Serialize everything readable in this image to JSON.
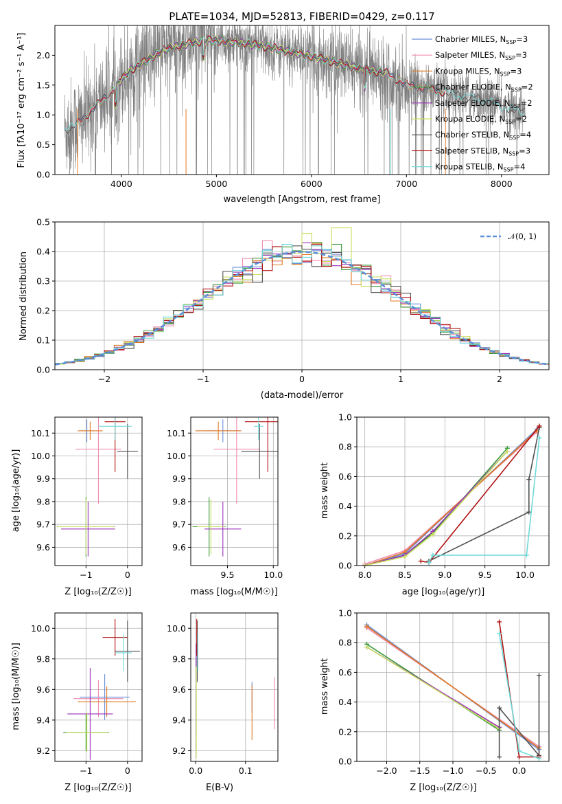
{
  "colors": {
    "chabrier_miles": "#6a8fd8",
    "salpeter_miles": "#f08cb0",
    "kroupa_miles": "#e07820",
    "chabrier_elodie": "#3a9a3a",
    "salpeter_elodie": "#9a30b8",
    "kroupa_elodie": "#c8e060",
    "chabrier_stelib": "#505050",
    "salpeter_stelib": "#b01010",
    "kroupa_stelib": "#70d8d8",
    "data": "#808080",
    "gauss": "#5b8fd8"
  },
  "chart_data": [
    {
      "id": "spectrum",
      "type": "line",
      "title": "PLATE=1034, MJD=52813, FIBERID=0429, z=0.117",
      "xlabel": "wavelength [Angstrom, rest frame]",
      "ylabel": "Flux [fλ10⁻¹⁷ erg cm⁻² s⁻¹ A⁻¹]",
      "xlim": [
        3300,
        8500
      ],
      "ylim": [
        0,
        2.5
      ],
      "xticks": [
        "4000",
        "5000",
        "6000",
        "7000",
        "8000"
      ],
      "yticks": [
        "0.0",
        "0.5",
        "1.0",
        "1.5",
        "2.0"
      ],
      "legend_position": "right",
      "legend": [
        {
          "key": "chabrier_miles",
          "label": "Chabrier MILES, N",
          "sub": "SSP",
          "eq": "=3"
        },
        {
          "key": "salpeter_miles",
          "label": "Salpeter MILES, N",
          "sub": "SSP",
          "eq": "=3"
        },
        {
          "key": "kroupa_miles",
          "label": "Kroupa MILES, N",
          "sub": "SSP",
          "eq": "=3"
        },
        {
          "key": "chabrier_elodie",
          "label": "Chabrier ELODIE, N",
          "sub": "SSP",
          "eq": "=2"
        },
        {
          "key": "salpeter_elodie",
          "label": "Salpeter ELODIE, N",
          "sub": "SSP",
          "eq": "=2"
        },
        {
          "key": "kroupa_elodie",
          "label": "Kroupa ELODIE, N",
          "sub": "SSP",
          "eq": "=2"
        },
        {
          "key": "chabrier_stelib",
          "label": "Chabrier STELIB, N",
          "sub": "SSP",
          "eq": "=4"
        },
        {
          "key": "salpeter_stelib",
          "label": "Salpeter STELIB, N",
          "sub": "SSP",
          "eq": "=3"
        },
        {
          "key": "kroupa_stelib",
          "label": "Kroupa STELIB, N",
          "sub": "SSP",
          "eq": "=4"
        }
      ],
      "model_continuum": {
        "x": [
          3400,
          3500,
          3600,
          3700,
          3800,
          3900,
          4000,
          4100,
          4200,
          4300,
          4400,
          4500,
          4600,
          4700,
          4800,
          4900,
          5000,
          5200,
          5400,
          5600,
          5800,
          6000,
          6200,
          6400,
          6600,
          6800,
          7000,
          7200,
          7400,
          7600,
          7800,
          8000,
          8200
        ],
        "y": [
          0.75,
          0.8,
          0.95,
          1.1,
          1.25,
          1.4,
          1.6,
          1.75,
          1.85,
          1.95,
          2.05,
          2.12,
          2.15,
          2.2,
          2.22,
          2.25,
          2.25,
          2.22,
          2.18,
          2.12,
          2.05,
          1.98,
          1.9,
          1.82,
          1.75,
          1.7,
          1.5,
          1.45,
          1.38,
          1.32,
          1.25,
          1.15,
          1.05
        ]
      }
    },
    {
      "id": "residuals",
      "type": "histogram",
      "xlabel": "(data-model)/error",
      "ylabel": "Normed distribution",
      "xlim": [
        -2.5,
        2.5
      ],
      "ylim": [
        0,
        0.5
      ],
      "xticks": [
        "−2",
        "−1",
        "0",
        "1",
        "2"
      ],
      "yticks": [
        "0.0",
        "0.1",
        "0.2",
        "0.3",
        "0.4",
        "0.5"
      ],
      "legend": [
        {
          "key": "gauss",
          "label": "𝒩(0, 1)"
        }
      ],
      "legend_position": "top-right",
      "bin_width": 0.1
    },
    {
      "id": "age_vs_Z",
      "type": "errorbar",
      "xlabel": "Z [log₁₀(Z/Z☉)]",
      "ylabel": "age  [log₁₀(age/yr)]",
      "xlim": [
        -1.75,
        0.35
      ],
      "ylim": [
        9.52,
        10.17
      ],
      "xticks": [
        "−1",
        "0"
      ],
      "yticks": [
        "9.6",
        "9.7",
        "9.8",
        "9.9",
        "10.0",
        "10.1"
      ],
      "points": [
        {
          "key": "chabrier_miles",
          "x": -0.98,
          "xerr": 0.15,
          "y": 10.11,
          "yerr": 0.05
        },
        {
          "key": "salpeter_miles",
          "x": -0.7,
          "xerr": 0.55,
          "y": 10.03,
          "yerr": 0.24
        },
        {
          "key": "kroupa_miles",
          "x": -0.9,
          "xerr": 0.3,
          "y": 10.11,
          "yerr": 0.04
        },
        {
          "key": "chabrier_elodie",
          "x": -1.0,
          "xerr": 0.7,
          "y": 9.69,
          "yerr": 0.13
        },
        {
          "key": "salpeter_elodie",
          "x": -0.95,
          "xerr": 0.65,
          "y": 9.68,
          "yerr": 0.12
        },
        {
          "key": "kroupa_elodie",
          "x": -1.0,
          "xerr": 0.68,
          "y": 9.69,
          "yerr": 0.12
        },
        {
          "key": "chabrier_stelib",
          "x": 0.0,
          "xerr": 0.25,
          "y": 10.02,
          "yerr": 0.12
        },
        {
          "key": "salpeter_stelib",
          "x": -0.3,
          "xerr": 0.25,
          "y": 10.15,
          "yerr": 0.22
        },
        {
          "key": "kroupa_stelib",
          "x": -0.3,
          "xerr": 0.4,
          "y": 10.13,
          "yerr": 0.06
        }
      ]
    },
    {
      "id": "age_vs_mass",
      "type": "errorbar",
      "xlabel": "mass [log₁₀(M/M☉)]",
      "ylabel": "",
      "xlim": [
        9.1,
        10.05
      ],
      "ylim": [
        9.52,
        10.17
      ],
      "xticks": [
        "9.5",
        "10.0"
      ],
      "yticks": [
        "9.6",
        "9.7",
        "9.8",
        "9.9",
        "10.0",
        "10.1"
      ],
      "points": [
        {
          "key": "chabrier_miles",
          "x": 9.45,
          "xerr": 0.2,
          "y": 10.11,
          "yerr": 0.05
        },
        {
          "key": "salpeter_miles",
          "x": 9.6,
          "xerr": 0.25,
          "y": 10.03,
          "yerr": 0.24
        },
        {
          "key": "kroupa_miles",
          "x": 9.4,
          "xerr": 0.25,
          "y": 10.11,
          "yerr": 0.04
        },
        {
          "key": "chabrier_elodie",
          "x": 9.3,
          "xerr": 0.18,
          "y": 9.69,
          "yerr": 0.13
        },
        {
          "key": "salpeter_elodie",
          "x": 9.45,
          "xerr": 0.2,
          "y": 9.68,
          "yerr": 0.12
        },
        {
          "key": "kroupa_elodie",
          "x": 9.32,
          "xerr": 0.15,
          "y": 9.69,
          "yerr": 0.12
        },
        {
          "key": "chabrier_stelib",
          "x": 9.85,
          "xerr": 0.2,
          "y": 10.02,
          "yerr": 0.12
        },
        {
          "key": "salpeter_stelib",
          "x": 9.94,
          "xerr": 0.25,
          "y": 10.15,
          "yerr": 0.22
        },
        {
          "key": "kroupa_stelib",
          "x": 9.84,
          "xerr": 0.05,
          "y": 10.13,
          "yerr": 0.06
        }
      ]
    },
    {
      "id": "weight_vs_age",
      "type": "line",
      "xlabel": "age  [log₁₀(age/yr)]",
      "ylabel": "mass weight",
      "xlim": [
        7.9,
        10.3
      ],
      "ylim": [
        0,
        1
      ],
      "xticks": [
        "8.0",
        "8.5",
        "9.0",
        "9.5",
        "10.0"
      ],
      "yticks": [
        "0.0",
        "0.2",
        "0.4",
        "0.6",
        "0.8",
        "1.0"
      ],
      "series": [
        {
          "key": "chabrier_miles",
          "x": [
            8.0,
            8.5,
            10.15
          ],
          "y": [
            0.0,
            0.08,
            0.92
          ]
        },
        {
          "key": "salpeter_miles",
          "x": [
            8.0,
            8.5,
            10.15
          ],
          "y": [
            0.01,
            0.1,
            0.9
          ]
        },
        {
          "key": "kroupa_miles",
          "x": [
            8.0,
            8.5,
            10.15
          ],
          "y": [
            0.0,
            0.09,
            0.91
          ]
        },
        {
          "key": "chabrier_elodie",
          "x": [
            8.0,
            8.5,
            8.85,
            9.78
          ],
          "y": [
            0.0,
            0.07,
            0.22,
            0.79
          ]
        },
        {
          "key": "salpeter_elodie",
          "x": [
            8.0,
            8.5,
            8.85,
            9.78
          ],
          "y": [
            0.0,
            0.07,
            0.23,
            0.77
          ]
        },
        {
          "key": "kroupa_elodie",
          "x": [
            8.0,
            8.5,
            8.85,
            9.78
          ],
          "y": [
            0.0,
            0.06,
            0.21,
            0.77
          ]
        },
        {
          "key": "chabrier_stelib",
          "x": [
            8.8,
            10.05,
            10.05,
            10.18
          ],
          "y": [
            0.03,
            0.36,
            0.58,
            0.93
          ]
        },
        {
          "key": "salpeter_stelib",
          "x": [
            8.7,
            8.8,
            10.18
          ],
          "y": [
            0.03,
            0.02,
            0.94
          ]
        },
        {
          "key": "kroupa_stelib",
          "x": [
            8.8,
            8.85,
            10.02,
            10.18
          ],
          "y": [
            0.02,
            0.07,
            0.07,
            0.86
          ]
        }
      ]
    },
    {
      "id": "mass_vs_Z",
      "type": "errorbar",
      "xlabel": "Z [log₁₀(Z/Z☉)]",
      "ylabel": "mass [log₁₀(M/M☉)]",
      "xlim": [
        -1.75,
        0.35
      ],
      "ylim": [
        9.13,
        10.1
      ],
      "xticks": [
        "−1",
        "0"
      ],
      "yticks": [
        "9.2",
        "9.4",
        "9.6",
        "9.8",
        "10.0"
      ],
      "points": [
        {
          "key": "chabrier_miles",
          "x": -0.55,
          "xerr": 0.6,
          "y": 9.55,
          "yerr": 0.15
        },
        {
          "key": "salpeter_miles",
          "x": -0.7,
          "xerr": 0.6,
          "y": 9.54,
          "yerr": 0.12
        },
        {
          "key": "kroupa_miles",
          "x": -0.5,
          "xerr": 0.7,
          "y": 9.52,
          "yerr": 0.1
        },
        {
          "key": "chabrier_elodie",
          "x": -1.0,
          "xerr": 0.55,
          "y": 9.32,
          "yerr": 0.12
        },
        {
          "key": "salpeter_elodie",
          "x": -0.9,
          "xerr": 0.55,
          "y": 9.44,
          "yerr": 0.3
        },
        {
          "key": "kroupa_elodie",
          "x": -0.98,
          "xerr": 0.5,
          "y": 9.32,
          "yerr": 0.13
        },
        {
          "key": "chabrier_stelib",
          "x": 0.0,
          "xerr": 0.3,
          "y": 9.85,
          "yerr": 0.2
        },
        {
          "key": "salpeter_stelib",
          "x": -0.3,
          "xerr": 0.3,
          "y": 9.94,
          "yerr": 0.12
        },
        {
          "key": "kroupa_stelib",
          "x": -0.1,
          "xerr": 0.2,
          "y": 9.84,
          "yerr": 0.12
        }
      ]
    },
    {
      "id": "mass_vs_ebv",
      "type": "errorbar",
      "xlabel": "E(B-V)",
      "ylabel": "",
      "xlim": [
        -0.01,
        0.165
      ],
      "ylim": [
        9.13,
        10.1
      ],
      "xticks": [
        "0.0",
        "0.1"
      ],
      "yticks": [
        "9.2",
        "9.4",
        "9.6",
        "9.8",
        "10.0"
      ],
      "points": [
        {
          "key": "chabrier_miles",
          "x": 0.113,
          "xerr": 0.0,
          "y": 9.55,
          "yerr": 0.1
        },
        {
          "key": "salpeter_miles",
          "x": 0.158,
          "xerr": 0.0,
          "y": 9.51,
          "yerr": 0.17
        },
        {
          "key": "kroupa_miles",
          "x": 0.113,
          "xerr": 0.0,
          "y": 9.45,
          "yerr": 0.18
        },
        {
          "key": "chabrier_elodie",
          "x": 0.001,
          "xerr": 0.0,
          "y": 9.5,
          "yerr": 0.3
        },
        {
          "key": "salpeter_elodie",
          "x": 0.001,
          "xerr": 0.0,
          "y": 9.6,
          "yerr": 0.3
        },
        {
          "key": "kroupa_elodie",
          "x": 0.001,
          "xerr": 0.0,
          "y": 9.45,
          "yerr": 0.3
        },
        {
          "key": "chabrier_stelib",
          "x": 0.003,
          "xerr": 0.0,
          "y": 9.85,
          "yerr": 0.2
        },
        {
          "key": "salpeter_stelib",
          "x": 0.002,
          "xerr": 0.0,
          "y": 9.94,
          "yerr": 0.12
        },
        {
          "key": "kroupa_stelib",
          "x": 0.004,
          "xerr": 0.0,
          "y": 9.84,
          "yerr": 0.12
        }
      ]
    },
    {
      "id": "weight_vs_Z",
      "type": "line",
      "xlabel": "Z [log₁₀(Z/Z☉)]",
      "ylabel": "mass weight",
      "xlim": [
        -2.45,
        0.45
      ],
      "ylim": [
        0,
        1
      ],
      "xticks": [
        "−2.0",
        "−1.5",
        "−1.0",
        "−0.5",
        "0.0"
      ],
      "yticks": [
        "0.0",
        "0.2",
        "0.4",
        "0.6",
        "0.8",
        "1.0"
      ],
      "series": [
        {
          "key": "chabrier_miles",
          "x": [
            -2.3,
            0.3
          ],
          "y": [
            0.92,
            0.08
          ]
        },
        {
          "key": "salpeter_miles",
          "x": [
            -2.3,
            0.3
          ],
          "y": [
            0.9,
            0.1
          ]
        },
        {
          "key": "kroupa_miles",
          "x": [
            -2.3,
            0.3
          ],
          "y": [
            0.91,
            0.09
          ]
        },
        {
          "key": "chabrier_elodie",
          "x": [
            -2.3,
            -0.3
          ],
          "y": [
            0.79,
            0.21
          ]
        },
        {
          "key": "salpeter_elodie",
          "x": [
            -2.3,
            -0.3
          ],
          "y": [
            0.77,
            0.23
          ]
        },
        {
          "key": "kroupa_elodie",
          "x": [
            -2.3,
            -0.3
          ],
          "y": [
            0.77,
            0.22
          ]
        },
        {
          "key": "chabrier_stelib",
          "x": [
            -0.3,
            -0.3,
            0.3,
            0.3
          ],
          "y": [
            0.03,
            0.36,
            0.04,
            0.58
          ]
        },
        {
          "key": "salpeter_stelib",
          "x": [
            -0.3,
            0.0,
            0.3
          ],
          "y": [
            0.94,
            0.03,
            0.03
          ]
        },
        {
          "key": "kroupa_stelib",
          "x": [
            -0.3,
            0.0,
            0.3
          ],
          "y": [
            0.86,
            0.07,
            0.02
          ]
        }
      ]
    }
  ]
}
